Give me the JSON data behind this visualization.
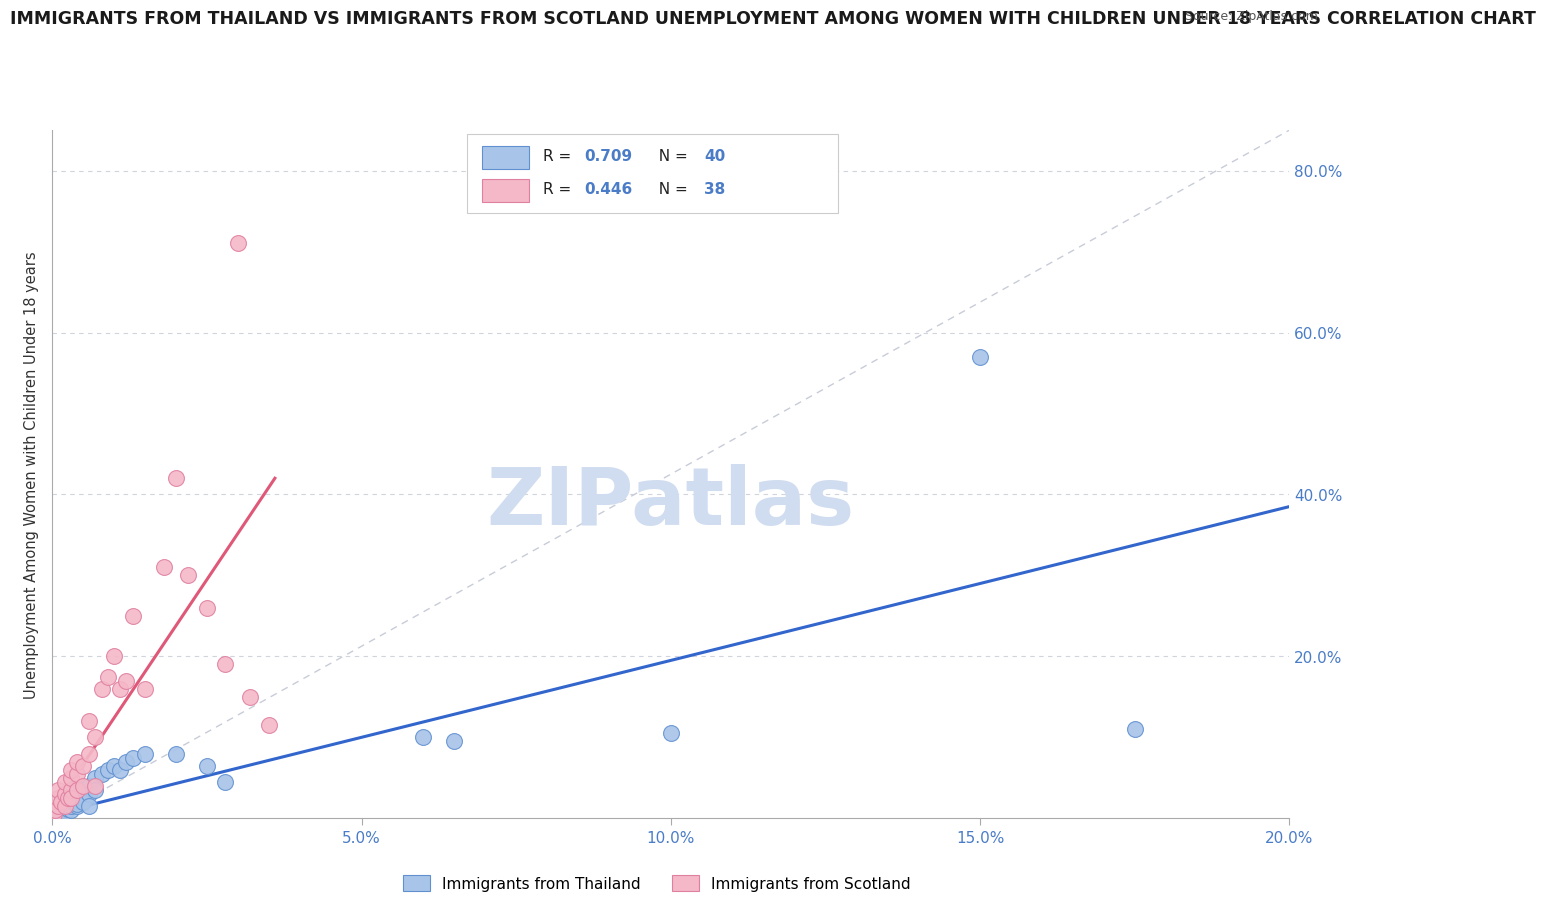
{
  "title": "IMMIGRANTS FROM THAILAND VS IMMIGRANTS FROM SCOTLAND UNEMPLOYMENT AMONG WOMEN WITH CHILDREN UNDER 18 YEARS CORRELATION CHART",
  "source": "Source: ZipAtlas.com",
  "ylabel": "Unemployment Among Women with Children Under 18 years",
  "xlim": [
    0,
    0.2
  ],
  "ylim": [
    0,
    0.85
  ],
  "xticks": [
    0.0,
    0.05,
    0.1,
    0.15,
    0.2
  ],
  "xtick_labels": [
    "0.0%",
    "5.0%",
    "10.0%",
    "15.0%",
    "20.0%"
  ],
  "yticks": [
    0.0,
    0.2,
    0.4,
    0.6,
    0.8
  ],
  "ytick_labels": [
    "",
    "20.0%",
    "40.0%",
    "60.0%",
    "80.0%"
  ],
  "legend_blue_label": "Immigrants from Thailand",
  "legend_pink_label": "Immigrants from Scotland",
  "R_blue": "0.709",
  "N_blue": "40",
  "R_pink": "0.446",
  "N_pink": "38",
  "blue_scatter_color": "#a8c4e8",
  "pink_scatter_color": "#f4b8c8",
  "blue_edge_color": "#6090d0",
  "pink_edge_color": "#e080a0",
  "blue_line_color": "#3366cc",
  "pink_line_color": "#e05878",
  "ref_line_color": "#c8ccd8",
  "watermark_text": "ZIPatlas",
  "watermark_color": "#d0ddf0",
  "blue_line_x0": 0.0,
  "blue_line_y0": 0.005,
  "blue_line_x1": 0.2,
  "blue_line_y1": 0.385,
  "pink_line_x0": 0.0,
  "pink_line_y0": 0.01,
  "pink_line_x1": 0.036,
  "pink_line_y1": 0.42,
  "thailand_x": [
    0.0005,
    0.001,
    0.001,
    0.0015,
    0.002,
    0.002,
    0.002,
    0.0025,
    0.003,
    0.003,
    0.003,
    0.003,
    0.0035,
    0.004,
    0.004,
    0.004,
    0.004,
    0.005,
    0.005,
    0.005,
    0.006,
    0.006,
    0.006,
    0.007,
    0.007,
    0.008,
    0.009,
    0.01,
    0.011,
    0.012,
    0.013,
    0.015,
    0.02,
    0.025,
    0.028,
    0.06,
    0.065,
    0.1,
    0.15,
    0.175
  ],
  "thailand_y": [
    0.005,
    0.008,
    0.012,
    0.01,
    0.015,
    0.008,
    0.02,
    0.012,
    0.018,
    0.01,
    0.025,
    0.015,
    0.02,
    0.025,
    0.015,
    0.03,
    0.018,
    0.025,
    0.035,
    0.02,
    0.04,
    0.03,
    0.015,
    0.05,
    0.035,
    0.055,
    0.06,
    0.065,
    0.06,
    0.07,
    0.075,
    0.08,
    0.08,
    0.065,
    0.045,
    0.1,
    0.095,
    0.105,
    0.57,
    0.11
  ],
  "scotland_x": [
    0.0003,
    0.0005,
    0.001,
    0.001,
    0.001,
    0.0015,
    0.002,
    0.002,
    0.002,
    0.0025,
    0.003,
    0.003,
    0.003,
    0.003,
    0.004,
    0.004,
    0.004,
    0.005,
    0.005,
    0.006,
    0.006,
    0.007,
    0.007,
    0.008,
    0.009,
    0.01,
    0.011,
    0.012,
    0.013,
    0.015,
    0.018,
    0.02,
    0.022,
    0.025,
    0.028,
    0.03,
    0.032,
    0.035
  ],
  "scotland_y": [
    0.005,
    0.01,
    0.015,
    0.025,
    0.035,
    0.02,
    0.03,
    0.015,
    0.045,
    0.025,
    0.035,
    0.05,
    0.06,
    0.025,
    0.055,
    0.035,
    0.07,
    0.065,
    0.04,
    0.08,
    0.12,
    0.1,
    0.04,
    0.16,
    0.175,
    0.2,
    0.16,
    0.17,
    0.25,
    0.16,
    0.31,
    0.42,
    0.3,
    0.26,
    0.19,
    0.71,
    0.15,
    0.115
  ]
}
